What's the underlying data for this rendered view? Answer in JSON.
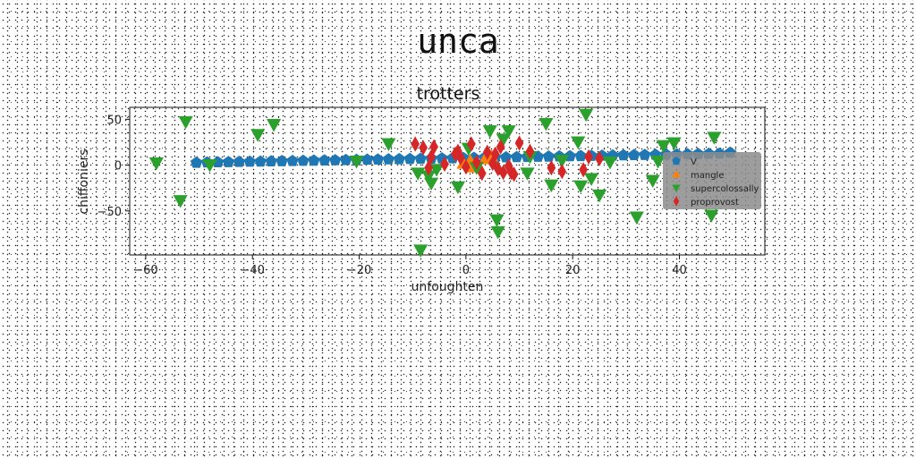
{
  "figure": {
    "suptitle": "unca"
  },
  "chart_data": {
    "type": "scatter",
    "title": "trotters",
    "xlabel": "unfoughten",
    "ylabel": "chiffoniers",
    "xlim": [
      -63,
      56
    ],
    "ylim": [
      -98,
      63
    ],
    "xticks": [
      -60,
      -40,
      -20,
      0,
      20,
      40
    ],
    "xtick_labels": [
      "−60",
      "−40",
      "−20",
      "0",
      "20",
      "40"
    ],
    "yticks": [
      -50,
      0,
      50
    ],
    "ytick_labels": [
      "−50",
      "0",
      "50"
    ],
    "grid": false,
    "legend_position": "center-right",
    "series": [
      {
        "name": "V",
        "marker": "pentagon",
        "color": "#1f77b4",
        "x": [
          -50.5,
          -48.5,
          -46.5,
          -44.5,
          -42.5,
          -40.5,
          -38.5,
          -36.5,
          -34.5,
          -32.5,
          -30.5,
          -28.5,
          -26.5,
          -24.5,
          -22.5,
          -20.5,
          -18.5,
          -16.5,
          -14.5,
          -12.5,
          -10.5,
          -8.5,
          -6.5,
          -4.5,
          -2.5,
          -0.5,
          1.5,
          3.5,
          5.5,
          7.5,
          9.5,
          11.5,
          13.5,
          15.5,
          17.5,
          19.5,
          21.5,
          23.5,
          25.5,
          27.5,
          29.5,
          31.5,
          33.5,
          35.5,
          37.5,
          39.5,
          41.5,
          43.5,
          45.5,
          47.5,
          49.5
        ],
        "y": [
          2.6,
          2.9,
          3.1,
          3.3,
          3.5,
          3.7,
          3.9,
          4.1,
          4.3,
          4.5,
          4.7,
          4.9,
          5.1,
          5.3,
          5.5,
          5.7,
          5.9,
          6.1,
          6.3,
          6.5,
          6.7,
          6.9,
          7.1,
          7.3,
          7.5,
          7.7,
          7.9,
          8.1,
          8.3,
          8.5,
          8.7,
          8.9,
          9.1,
          9.3,
          9.5,
          9.7,
          9.9,
          10.1,
          10.3,
          10.5,
          10.7,
          10.9,
          11.1,
          11.3,
          11.5,
          11.7,
          11.9,
          12.1,
          12.3,
          12.5,
          13.5
        ]
      },
      {
        "name": "mangle",
        "marker": "triangle-up",
        "color": "#ff7f0e",
        "x": [
          -0.5,
          0.8,
          2.2,
          3.6,
          1.5,
          4.8
        ],
        "y": [
          1.5,
          4.5,
          0.5,
          6.5,
          -2.5,
          9.5
        ]
      },
      {
        "name": "supercolossally",
        "marker": "triangle-down",
        "color": "#2ca02c",
        "x": [
          -58,
          -52.5,
          -53.5,
          -48,
          -39,
          -36,
          -20.5,
          -14.5,
          -9,
          -8.5,
          -7,
          -6.5,
          -5.5,
          -1.5,
          0.5,
          2,
          4.5,
          5.8,
          6,
          7,
          8,
          11.5,
          12,
          15,
          16,
          18,
          21,
          21.5,
          22.5,
          23.5,
          25,
          27,
          32,
          35,
          36,
          37,
          39,
          46.5,
          46
        ],
        "y": [
          2.5,
          47.5,
          -38.5,
          0.5,
          33.5,
          44.5,
          4.5,
          23.5,
          -8.5,
          -92.5,
          -11.5,
          -19.5,
          -4.5,
          -23.5,
          18.5,
          -2.5,
          37.5,
          -59.5,
          -72.5,
          28.5,
          37.5,
          -8.5,
          9.5,
          45.5,
          -21.5,
          5.5,
          25.5,
          -22.5,
          55.5,
          -14.5,
          -32.5,
          3.5,
          -56.5,
          -16.5,
          4.5,
          21.5,
          24.5,
          30.5,
          -54.5
        ]
      },
      {
        "name": "proprovost",
        "marker": "diamond",
        "color": "#d62728",
        "x": [
          -9.5,
          -8,
          -7,
          -6.5,
          -6,
          -4,
          -2,
          -1.5,
          -1,
          0,
          1,
          2,
          3,
          4,
          5,
          5.5,
          6,
          6.5,
          7,
          8,
          8.5,
          9,
          10,
          12,
          16,
          18,
          22,
          23,
          25
        ],
        "y": [
          23,
          19,
          -3,
          9,
          20,
          1,
          12,
          15,
          8,
          -2,
          23,
          3,
          -9,
          14,
          2,
          12,
          -4,
          20,
          -8,
          -1,
          -8,
          -10,
          24,
          15,
          -3,
          -7,
          -5,
          9,
          7
        ]
      }
    ]
  }
}
